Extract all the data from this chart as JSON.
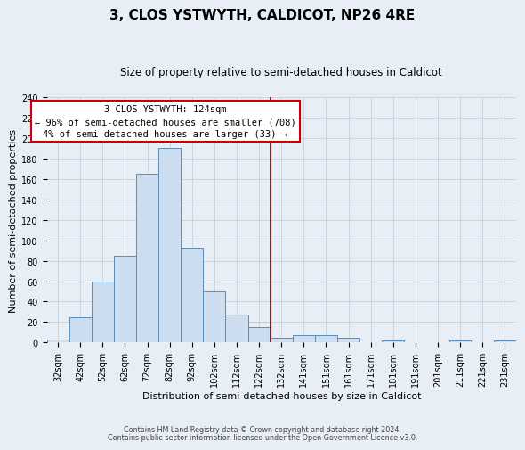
{
  "title": "3, CLOS YSTWYTH, CALDICOT, NP26 4RE",
  "subtitle": "Size of property relative to semi-detached houses in Caldicot",
  "xlabel": "Distribution of semi-detached houses by size in Caldicot",
  "ylabel": "Number of semi-detached properties",
  "categories": [
    "32sqm",
    "42sqm",
    "52sqm",
    "62sqm",
    "72sqm",
    "82sqm",
    "92sqm",
    "102sqm",
    "112sqm",
    "122sqm",
    "132sqm",
    "141sqm",
    "151sqm",
    "161sqm",
    "171sqm",
    "181sqm",
    "191sqm",
    "201sqm",
    "211sqm",
    "221sqm",
    "231sqm"
  ],
  "values": [
    3,
    25,
    60,
    85,
    165,
    190,
    93,
    50,
    27,
    15,
    5,
    7,
    7,
    5,
    0,
    2,
    0,
    0,
    2,
    0,
    2
  ],
  "bar_color": "#ccddf0",
  "bar_edge_color": "#5b8db8",
  "grid_color": "#c8d0dc",
  "bg_color": "#e8eef5",
  "vline_color": "#990000",
  "annotation_text": "3 CLOS YSTWYTH: 124sqm\n← 96% of semi-detached houses are smaller (708)\n4% of semi-detached houses are larger (33) →",
  "annotation_box_color": "#ffffff",
  "annotation_box_edge": "#cc0000",
  "ylim": [
    0,
    240
  ],
  "yticks": [
    0,
    20,
    40,
    60,
    80,
    100,
    120,
    140,
    160,
    180,
    200,
    220,
    240
  ],
  "footer1": "Contains HM Land Registry data © Crown copyright and database right 2024.",
  "footer2": "Contains public sector information licensed under the Open Government Licence v3.0.",
  "title_fontsize": 11,
  "subtitle_fontsize": 8.5,
  "label_fontsize": 8,
  "tick_fontsize": 7,
  "annotation_fontsize": 7.5,
  "footer_fontsize": 5.8
}
